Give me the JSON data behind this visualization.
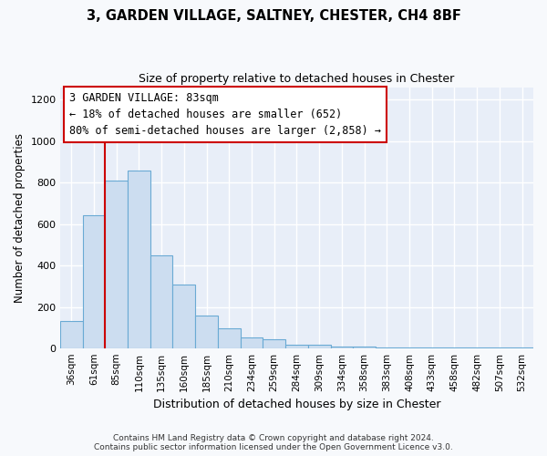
{
  "title_line1": "3, GARDEN VILLAGE, SALTNEY, CHESTER, CH4 8BF",
  "title_line2": "Size of property relative to detached houses in Chester",
  "xlabel": "Distribution of detached houses by size in Chester",
  "ylabel": "Number of detached properties",
  "categories": [
    "36sqm",
    "61sqm",
    "85sqm",
    "110sqm",
    "135sqm",
    "160sqm",
    "185sqm",
    "210sqm",
    "234sqm",
    "259sqm",
    "284sqm",
    "309sqm",
    "334sqm",
    "358sqm",
    "383sqm",
    "408sqm",
    "433sqm",
    "458sqm",
    "482sqm",
    "507sqm",
    "532sqm"
  ],
  "values": [
    135,
    645,
    810,
    860,
    450,
    310,
    160,
    97,
    55,
    45,
    20,
    20,
    10,
    10,
    5,
    5,
    5,
    5,
    5,
    5,
    5
  ],
  "bar_color": "#ccddf0",
  "bar_edge_color": "#6aaad4",
  "vline_color": "#cc0000",
  "vline_x": 2.0,
  "annotation_text": "3 GARDEN VILLAGE: 83sqm\n← 18% of detached houses are smaller (652)\n80% of semi-detached houses are larger (2,858) →",
  "annotation_box_color": "#ffffff",
  "annotation_box_edge": "#cc0000",
  "ylim": [
    0,
    1260
  ],
  "yticks": [
    0,
    200,
    400,
    600,
    800,
    1000,
    1200
  ],
  "footer_line1": "Contains HM Land Registry data © Crown copyright and database right 2024.",
  "footer_line2": "Contains public sector information licensed under the Open Government Licence v3.0.",
  "bg_color": "#f7f9fc",
  "plot_bg_color": "#e8eef8"
}
